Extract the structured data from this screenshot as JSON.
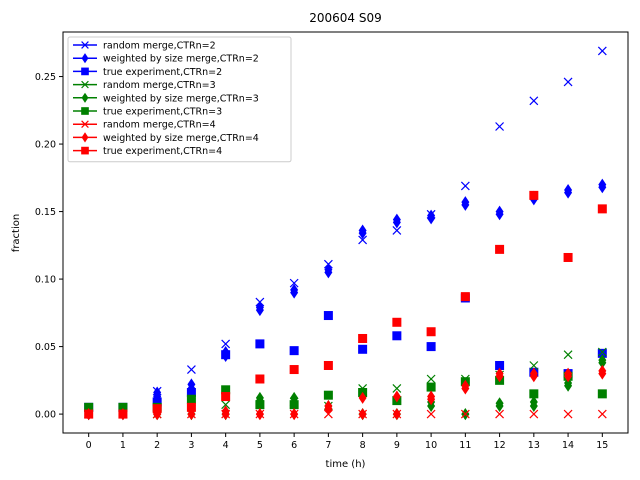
{
  "chart_data": {
    "type": "scatter",
    "title": "200604 S09",
    "xlabel": "time (h)",
    "ylabel": "fraction",
    "xlim": [
      -0.75,
      15.75
    ],
    "ylim": [
      -0.014,
      0.283
    ],
    "x_ticks": [
      0,
      1,
      2,
      3,
      4,
      5,
      6,
      7,
      8,
      9,
      10,
      11,
      12,
      13,
      14,
      15
    ],
    "x_tick_labels": [
      "0",
      "1",
      "2",
      "3",
      "4",
      "5",
      "6",
      "7",
      "8",
      "9",
      "10",
      "11",
      "12",
      "13",
      "14",
      "15"
    ],
    "y_ticks": [
      0.0,
      0.05,
      0.1,
      0.15,
      0.2,
      0.25
    ],
    "y_tick_labels": [
      "0.00",
      "0.05",
      "0.10",
      "0.15",
      "0.20",
      "0.25"
    ],
    "grid": false,
    "legend_position": "top-left",
    "series": [
      {
        "name": "random merge,CTRn=2",
        "color": "#0000ff",
        "marker": "x",
        "x": [
          0,
          1,
          2,
          3,
          4,
          5,
          6,
          7,
          8,
          9,
          10,
          11,
          12,
          13,
          14,
          15
        ],
        "y": [
          0.0,
          0.0,
          0.017,
          0.033,
          0.052,
          0.083,
          0.097,
          0.111,
          0.129,
          0.136,
          0.148,
          0.169,
          0.213,
          0.232,
          0.246,
          0.269
        ]
      },
      {
        "name": "weighted by size merge,CTRn=2",
        "color": "#0000ff",
        "marker": "diamond",
        "x": [
          0,
          0,
          1,
          1,
          2,
          2,
          3,
          3,
          4,
          4,
          5,
          5,
          6,
          6,
          7,
          7,
          8,
          8,
          9,
          9,
          10,
          10,
          11,
          11,
          12,
          12,
          13,
          13,
          14,
          14,
          15,
          15
        ],
        "y": [
          0.0,
          0.0,
          0.0,
          0.0,
          0.016,
          0.013,
          0.022,
          0.019,
          0.046,
          0.043,
          0.079,
          0.077,
          0.092,
          0.09,
          0.107,
          0.105,
          0.136,
          0.134,
          0.144,
          0.142,
          0.147,
          0.145,
          0.157,
          0.155,
          0.15,
          0.148,
          0.161,
          0.159,
          0.166,
          0.164,
          0.17,
          0.168
        ]
      },
      {
        "name": "true experiment,CTRn=2",
        "color": "#0000ff",
        "marker": "square",
        "x": [
          0,
          1,
          2,
          3,
          4,
          5,
          6,
          7,
          8,
          9,
          10,
          11,
          12,
          13,
          14,
          15
        ],
        "y": [
          0.005,
          0.005,
          0.009,
          0.016,
          0.044,
          0.052,
          0.047,
          0.073,
          0.048,
          0.058,
          0.05,
          0.086,
          0.036,
          0.031,
          0.03,
          0.045
        ]
      },
      {
        "name": "random merge,CTRn=3",
        "color": "#008000",
        "marker": "x",
        "x": [
          0,
          1,
          2,
          3,
          4,
          5,
          6,
          7,
          8,
          9,
          10,
          11,
          12,
          13,
          14,
          15
        ],
        "y": [
          0.0,
          0.0,
          0.0,
          0.009,
          0.007,
          0.007,
          0.009,
          0.006,
          0.019,
          0.019,
          0.026,
          0.026,
          0.029,
          0.036,
          0.044,
          0.046
        ]
      },
      {
        "name": "weighted by size merge,CTRn=3",
        "color": "#008000",
        "marker": "diamond",
        "x": [
          0,
          0,
          1,
          1,
          2,
          2,
          3,
          3,
          4,
          4,
          5,
          5,
          6,
          6,
          7,
          7,
          8,
          8,
          9,
          9,
          10,
          10,
          11,
          11,
          12,
          12,
          13,
          13,
          14,
          14,
          15,
          15
        ],
        "y": [
          0.0,
          0.0,
          0.0,
          0.0,
          0.0,
          0.0,
          0.0,
          0.0,
          0.0,
          0.0,
          0.012,
          0.01,
          0.012,
          0.009,
          0.006,
          0.004,
          0.0,
          0.0,
          0.0,
          0.0,
          0.009,
          0.006,
          0.0,
          0.0,
          0.008,
          0.006,
          0.009,
          0.006,
          0.023,
          0.021,
          0.04,
          0.038
        ]
      },
      {
        "name": "true experiment,CTRn=3",
        "color": "#008000",
        "marker": "square",
        "x": [
          0,
          1,
          2,
          3,
          4,
          5,
          6,
          7,
          8,
          9,
          10,
          11,
          12,
          13,
          14,
          15
        ],
        "y": [
          0.005,
          0.005,
          0.005,
          0.011,
          0.018,
          0.007,
          0.007,
          0.014,
          0.016,
          0.01,
          0.02,
          0.024,
          0.025,
          0.015,
          0.028,
          0.015
        ]
      },
      {
        "name": "random merge,CTRn=4",
        "color": "#ff0000",
        "marker": "x",
        "x": [
          0,
          1,
          2,
          3,
          4,
          5,
          6,
          7,
          8,
          9,
          10,
          11,
          12,
          13,
          14,
          15
        ],
        "y": [
          0.0,
          0.0,
          0.0,
          0.0,
          0.0,
          0.0,
          0.0,
          0.0,
          0.0,
          0.0,
          0.0,
          0.0,
          0.0,
          0.0,
          0.0,
          0.0
        ]
      },
      {
        "name": "weighted by size merge,CTRn=4",
        "color": "#ff0000",
        "marker": "diamond",
        "x": [
          0,
          0,
          1,
          1,
          2,
          2,
          3,
          3,
          4,
          4,
          5,
          5,
          6,
          6,
          7,
          7,
          8,
          8,
          9,
          9,
          10,
          10,
          11,
          11,
          12,
          12,
          13,
          13,
          14,
          14,
          15,
          15
        ],
        "y": [
          0.0,
          0.0,
          0.0,
          0.0,
          0.0,
          0.0,
          0.003,
          0.0,
          0.002,
          0.0,
          0.0,
          0.0,
          0.0,
          0.0,
          0.006,
          0.004,
          0.012,
          0.0,
          0.013,
          0.0,
          0.013,
          0.011,
          0.021,
          0.019,
          0.03,
          0.028,
          0.03,
          0.028,
          0.03,
          0.028,
          0.032,
          0.03
        ]
      },
      {
        "name": "true experiment,CTRn=4",
        "color": "#ff0000",
        "marker": "square",
        "x": [
          0,
          1,
          2,
          3,
          4,
          5,
          6,
          7,
          8,
          9,
          10,
          11,
          12,
          13,
          14,
          15
        ],
        "y": [
          0.0,
          0.0,
          0.004,
          0.005,
          0.013,
          0.026,
          0.033,
          0.036,
          0.056,
          0.068,
          0.061,
          0.087,
          0.122,
          0.162,
          0.116,
          0.152
        ]
      }
    ]
  }
}
